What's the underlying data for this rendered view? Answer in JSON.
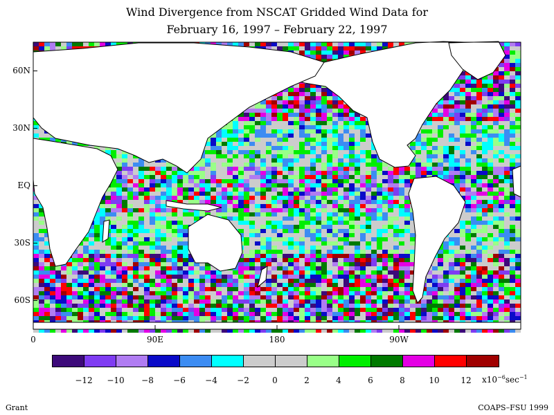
{
  "title": {
    "line1": "Wind Divergence from NSCAT Gridded Wind Data for",
    "line2": "February 16, 1997 – February 22, 1997"
  },
  "axes": {
    "lat_labels": [
      "60N",
      "30N",
      "EQ",
      "30S",
      "60S"
    ],
    "lat_values": [
      60,
      30,
      0,
      -30,
      -60
    ],
    "lon_labels": [
      "0",
      "90E",
      "180",
      "90W"
    ],
    "lon_values": [
      0,
      90,
      180,
      270
    ],
    "lat_range": [
      -75,
      75
    ],
    "lon_range": [
      0,
      360
    ]
  },
  "colorbar": {
    "colors": [
      "#3d0a7a",
      "#7f3cf2",
      "#b07cf2",
      "#0a0ac8",
      "#3c8cf2",
      "#00ffff",
      "#cccccc",
      "#cccccc",
      "#99ff88",
      "#00ee00",
      "#007a00",
      "#e400e4",
      "#ff0000",
      "#a00000"
    ],
    "tick_labels": [
      "−12",
      "−10",
      "−8",
      "−6",
      "−4",
      "−2",
      "0",
      "2",
      "4",
      "6",
      "8",
      "10",
      "12"
    ],
    "units": "x10",
    "units_exp": "−6",
    "units_tail": "sec",
    "units_tail_exp": "−1"
  },
  "footer": {
    "left": "Grant",
    "right": "COAPS–FSU 1999"
  }
}
